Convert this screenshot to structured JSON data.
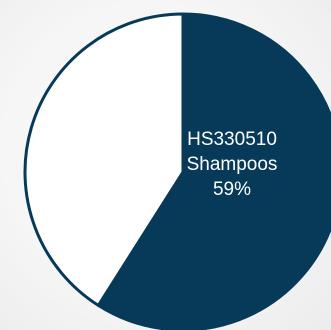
{
  "chart_data": {
    "type": "pie",
    "title": "",
    "slices": [
      {
        "category": "HS330510 Shampoos",
        "value": 59,
        "label_lines": [
          "HS330510",
          "Shampoos",
          "59%"
        ],
        "color": "#063a58"
      },
      {
        "category": "",
        "value": 41,
        "label_lines": [],
        "color": "#ffffff"
      }
    ],
    "unit": "%",
    "start_angle": "12 o'clock",
    "direction": "clockwise",
    "border_color": "#063a58",
    "legend": "none"
  }
}
